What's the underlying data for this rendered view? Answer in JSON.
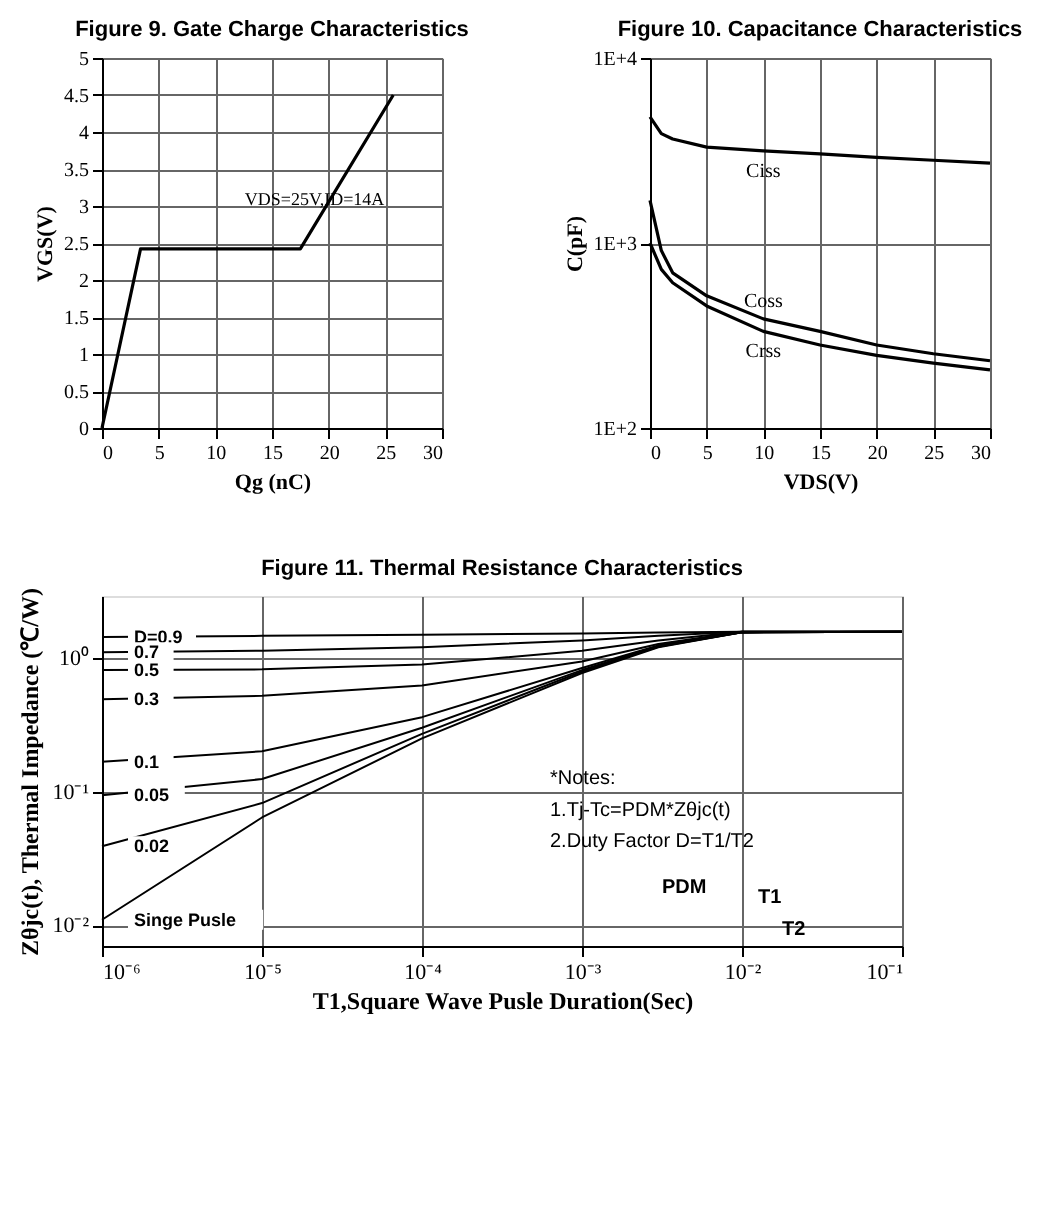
{
  "chart_data": [
    {
      "type": "line",
      "title": "Figure 9. Gate Charge Characteristics",
      "xlabel": "Qg (nC)",
      "ylabel": "VGS(V)",
      "x": [
        0,
        3.4,
        17.5,
        25.7
      ],
      "series": [
        {
          "color": "#000000",
          "values": [
            0,
            2.42,
            2.42,
            4.5
          ]
        }
      ],
      "xlim": [
        0,
        30
      ],
      "xticks": [
        0,
        5,
        10,
        15,
        20,
        25,
        30
      ],
      "ylim": [
        0,
        5
      ],
      "yticks": [
        0,
        0.5,
        1,
        1.5,
        2,
        2.5,
        3,
        3.5,
        4,
        4.5,
        5
      ],
      "grid": true,
      "annotations": [
        "VDS=25V,ID=14A"
      ]
    },
    {
      "type": "line",
      "title": "Figure 10. Capacitance Characteristics",
      "xlabel": "VDS(V)",
      "ylabel": "C(pF)",
      "x": [
        0,
        1,
        2,
        5,
        10,
        15,
        20,
        25,
        30
      ],
      "series": [
        {
          "name": "Ciss",
          "color": "#000000",
          "values": [
            4800,
            3900,
            3650,
            3300,
            3150,
            3030,
            2900,
            2800,
            2700
          ]
        },
        {
          "name": "Coss",
          "color": "#000000",
          "values": [
            1700,
            910,
            690,
            518,
            389,
            333,
            281,
            252,
            231
          ]
        },
        {
          "name": "Crss",
          "color": "#000000",
          "values": [
            1000,
            720,
            610,
            457,
            333,
            281,
            247,
            224,
            206
          ]
        }
      ],
      "xlim": [
        0,
        30
      ],
      "xticks": [
        0,
        5,
        10,
        15,
        20,
        25,
        30
      ],
      "ylim": [
        100,
        10000
      ],
      "yticks": [
        {
          "value": 100,
          "label": "1E+2"
        },
        {
          "value": 1000,
          "label": "1E+3"
        },
        {
          "value": 10000,
          "label": "1E+4"
        }
      ],
      "log": "y",
      "grid": true
    },
    {
      "type": "line",
      "title": "Figure 11. Thermal Resistance Characteristics",
      "xlabel": "T1,Square Wave Pusle Duration(Sec)",
      "ylabel": "Zθjc(t), Thermal Impedance (℃/W)",
      "x": [
        1e-06,
        1e-05,
        0.0001,
        0.001,
        0.003,
        0.01,
        0.1
      ],
      "series": [
        {
          "name": "D=0.9",
          "color": "#000000",
          "values": [
            1.43,
            1.46,
            1.49,
            1.52,
            1.55,
            1.57,
            1.57
          ]
        },
        {
          "name": "0.7",
          "color": "#000000",
          "values": [
            1.1,
            1.13,
            1.2,
            1.35,
            1.46,
            1.57,
            1.57
          ]
        },
        {
          "name": "0.5",
          "color": "#000000",
          "values": [
            0.81,
            0.82,
            0.89,
            1.13,
            1.35,
            1.57,
            1.57
          ]
        },
        {
          "name": "0.3",
          "color": "#000000",
          "values": [
            0.49,
            0.52,
            0.62,
            0.94,
            1.27,
            1.57,
            1.57
          ]
        },
        {
          "name": "0.1",
          "color": "#000000",
          "values": [
            0.167,
            0.2,
            0.36,
            0.84,
            1.24,
            1.55,
            1.57
          ]
        },
        {
          "name": "0.05",
          "color": "#000000",
          "values": [
            0.094,
            0.124,
            0.3,
            0.81,
            1.22,
            1.55,
            1.57
          ]
        },
        {
          "name": "0.02",
          "color": "#000000",
          "values": [
            0.039,
            0.082,
            0.27,
            0.79,
            1.21,
            1.55,
            1.57
          ]
        },
        {
          "name": "Singe Pusle",
          "color": "#000000",
          "values": [
            0.011,
            0.064,
            0.25,
            0.77,
            1.2,
            1.55,
            1.57
          ]
        }
      ],
      "xlim": [
        1e-06,
        0.1
      ],
      "xticks": [
        {
          "value": 1e-06,
          "label": "10⁻⁶"
        },
        {
          "value": 1e-05,
          "label": "10⁻⁵"
        },
        {
          "value": 0.0001,
          "label": "10⁻⁴"
        },
        {
          "value": 0.001,
          "label": "10⁻³"
        },
        {
          "value": 0.01,
          "label": "10⁻²"
        },
        {
          "value": 0.1,
          "label": "10⁻¹"
        }
      ],
      "ylim": [
        0.007,
        2.9
      ],
      "yticks": [
        {
          "value": 0.01,
          "label": "10⁻²"
        },
        {
          "value": 0.1,
          "label": "10⁻¹"
        },
        {
          "value": 1,
          "label": "10⁰"
        }
      ],
      "log": "xy",
      "grid": true,
      "annotations": [
        "*Notes:",
        "1.Tj-Tc=PDM*Zθjc(t)",
        "2.Duty Factor D=T1/T2",
        "PDM",
        "T1",
        "T2"
      ]
    }
  ]
}
